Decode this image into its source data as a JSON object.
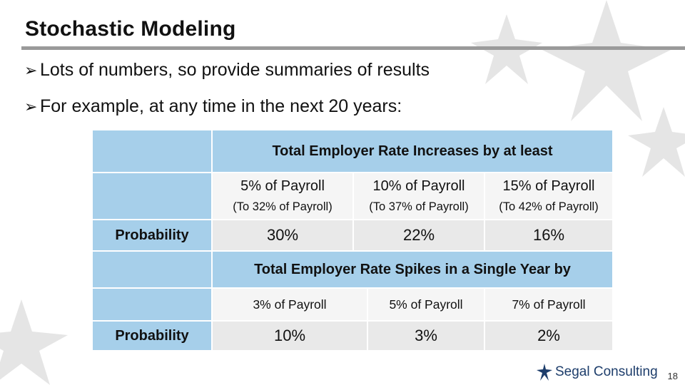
{
  "slide": {
    "title": "Stochastic Modeling",
    "bullets": [
      "Lots of numbers, so provide summaries of results",
      "For example, at any time in the next 20 years:"
    ],
    "page_number": "18"
  },
  "table1": {
    "header": "Total Employer Rate Increases by at least",
    "columns": [
      {
        "label": "5% of Payroll",
        "sub": "(To 32% of Payroll)",
        "value": "30%"
      },
      {
        "label": "10% of Payroll",
        "sub": "(To 37% of Payroll)",
        "value": "22%"
      },
      {
        "label": "15% of Payroll",
        "sub": "(To 42% of Payroll)",
        "value": "16%"
      }
    ],
    "row_label": "Probability"
  },
  "table2": {
    "header": "Total Employer Rate Spikes in a Single Year by",
    "columns": [
      {
        "label": "3% of Payroll",
        "value": "10%"
      },
      {
        "label": "5% of Payroll",
        "value": "3%"
      },
      {
        "label": "7% of Payroll",
        "value": "2%"
      }
    ],
    "row_label": "Probability"
  },
  "logo": {
    "text": "Segal Consulting"
  },
  "colors": {
    "header_blue": "#a6cfea",
    "cell_grey": "#e9e9e9",
    "rule_grey": "#9a9a9a",
    "logo_navy": "#1d3d6b"
  }
}
